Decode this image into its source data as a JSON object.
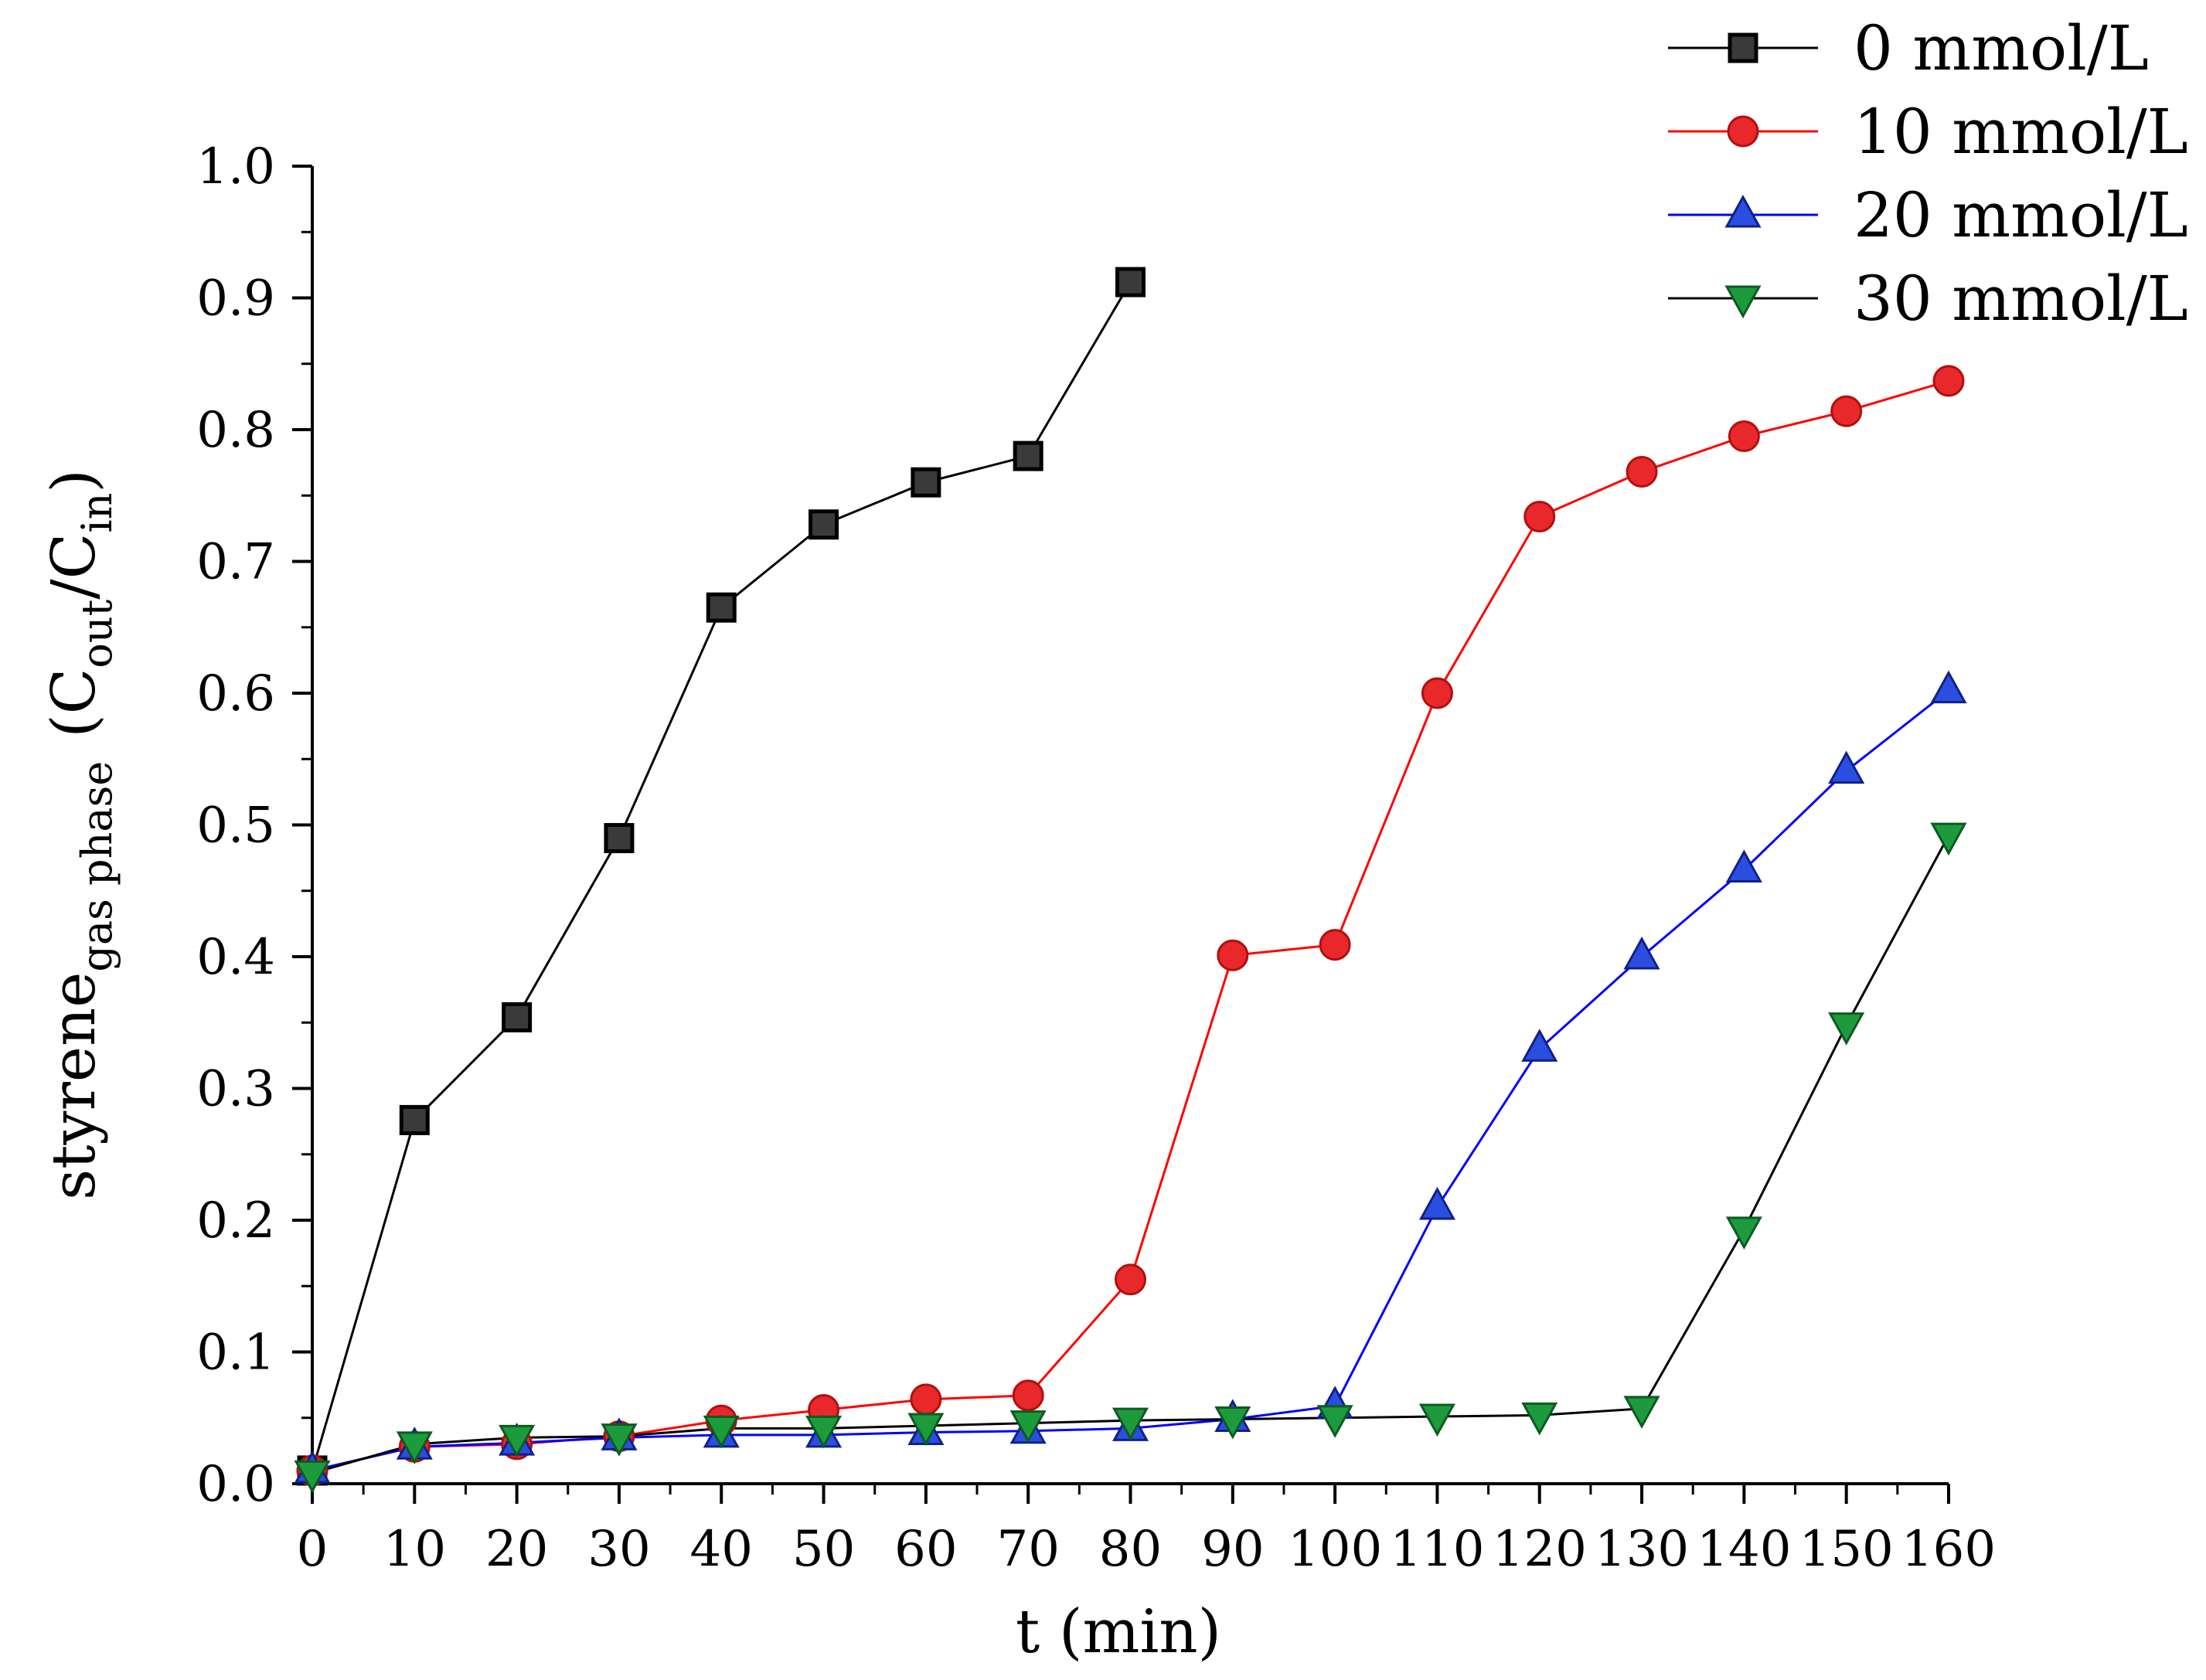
{
  "chart_data": {
    "type": "line",
    "title": "",
    "xlabel": "t (min)",
    "ylabel": {
      "base": "styrene",
      "base_sub": "gas phase",
      "ratio_open": "(C",
      "ratio_num_sub": "out",
      "ratio_sep": "/C",
      "ratio_den_sub": "in",
      "ratio_close": ")"
    },
    "xlim": [
      0,
      160
    ],
    "ylim": [
      0,
      1.0
    ],
    "x_ticks": [
      "0",
      "10",
      "20",
      "30",
      "40",
      "50",
      "60",
      "70",
      "80",
      "90",
      "100",
      "110",
      "120",
      "130",
      "140",
      "150",
      "160"
    ],
    "y_ticks": [
      "0.0",
      "0.1",
      "0.2",
      "0.3",
      "0.4",
      "0.5",
      "0.6",
      "0.7",
      "0.8",
      "0.9",
      "1.0"
    ],
    "grid": false,
    "legend_position": "top-right",
    "series": [
      {
        "name": "0 mmol/L",
        "color": "#000000",
        "fill": "#3a3a3a",
        "marker": "square",
        "x": [
          0,
          10,
          20,
          30,
          40,
          50,
          60,
          70,
          80
        ],
        "values": [
          0.01,
          0.276,
          0.354,
          0.49,
          0.665,
          0.728,
          0.76,
          0.78,
          0.912
        ]
      },
      {
        "name": "10 mmol/L",
        "color": "#ff0000",
        "fill": "#e8282a",
        "marker": "circle",
        "x": [
          0,
          10,
          20,
          30,
          40,
          50,
          60,
          70,
          80,
          90,
          100,
          110,
          120,
          130,
          140,
          150,
          160
        ],
        "values": [
          0.01,
          0.028,
          0.03,
          0.036,
          0.048,
          0.056,
          0.064,
          0.067,
          0.155,
          0.401,
          0.409,
          0.6,
          0.734,
          0.768,
          0.795,
          0.814,
          0.837
        ]
      },
      {
        "name": "20 mmol/L",
        "color": "#0000ff",
        "fill": "#2a4fe0",
        "marker": "triangle-up",
        "x": [
          0,
          10,
          20,
          30,
          40,
          50,
          60,
          70,
          80,
          90,
          100,
          110,
          120,
          130,
          140,
          150,
          160
        ],
        "values": [
          0.01,
          0.028,
          0.031,
          0.035,
          0.037,
          0.037,
          0.039,
          0.04,
          0.042,
          0.049,
          0.059,
          0.21,
          0.33,
          0.4,
          0.466,
          0.541,
          0.602
        ]
      },
      {
        "name": "30 mmol/L",
        "color": "#000000",
        "fill": "#1d9b3c",
        "marker": "triangle-down",
        "x": [
          0,
          10,
          20,
          30,
          40,
          50,
          60,
          70,
          80,
          90,
          100,
          110,
          120,
          130,
          140,
          150,
          160
        ],
        "values": [
          0.008,
          0.03,
          0.035,
          0.036,
          0.042,
          0.042,
          0.044,
          0.046,
          0.048,
          0.049,
          0.05,
          0.051,
          0.052,
          0.057,
          0.193,
          0.348,
          0.492
        ]
      }
    ]
  }
}
